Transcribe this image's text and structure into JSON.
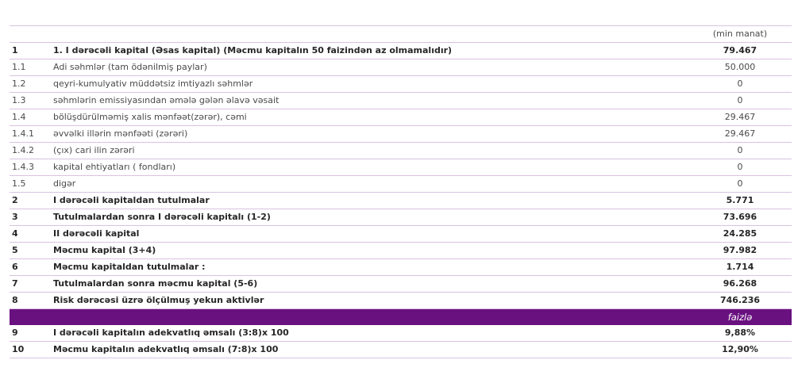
{
  "unit_label": "(min manat)",
  "percent_label": "faizlə",
  "colors": {
    "separator": "#d9c2e2",
    "band": "#6a1180",
    "bold_text": "#262626",
    "regular_text": "#4a4a4a"
  },
  "rows": [
    {
      "num": "1",
      "label": "1. I dərəcəli kapital (Əsas kapital) (Məcmu kapitalın 50 faizindən az olmamalıdır)",
      "value": "79.467",
      "bold": true
    },
    {
      "num": "1.1",
      "label": "Adi səhmlər (tam ödənilmiş paylar)",
      "value": "50.000",
      "bold": false
    },
    {
      "num": "1.2",
      "label": "qeyri-kumulyativ müddətsiz imtiyazlı səhmlər",
      "value": "0",
      "bold": false
    },
    {
      "num": "1.3",
      "label": "səhmlərin emissiyasından əmələ gələn əlavə vəsait",
      "value": "0",
      "bold": false
    },
    {
      "num": "1.4",
      "label": "bölüşdürülməmiş xalis mənfəət(zərər), cəmi",
      "value": "29.467",
      "bold": false
    },
    {
      "num": "1.4.1",
      "label": "əvvəlki illərin mənfəəti (zərəri)",
      "value": "29.467",
      "bold": false
    },
    {
      "num": "1.4.2",
      "label": "(çıx) cari ilin zərəri",
      "value": "0",
      "bold": false
    },
    {
      "num": "1.4.3",
      "label": "kapital ehtiyatları ( fondları)",
      "value": "0",
      "bold": false
    },
    {
      "num": "1.5",
      "label": "digər",
      "value": "0",
      "bold": false
    },
    {
      "num": "2",
      "label": "I dərəcəli kapitaldan tutulmalar",
      "value": "5.771",
      "bold": true
    },
    {
      "num": "3",
      "label": "Tutulmalardan sonra I dərəcəli kapitalı (1-2)",
      "value": "73.696",
      "bold": true
    },
    {
      "num": "4",
      "label": "II dərəcəli kapital",
      "value": "24.285",
      "bold": true
    },
    {
      "num": "5",
      "label": "Məcmu kapital  (3+4)",
      "value": "97.982",
      "bold": true
    },
    {
      "num": "6",
      "label": "Məcmu kapitaldan tutulmalar :",
      "value": "1.714",
      "bold": true
    },
    {
      "num": "7",
      "label": "Tutulmalardan sonra məcmu kapital (5-6)",
      "value": "96.268",
      "bold": true
    },
    {
      "num": "8",
      "label": "Risk dərəcəsi üzrə ölçülmuş yekun aktivlər",
      "value": "746.236",
      "bold": true
    }
  ],
  "rows_after_band": [
    {
      "num": "9",
      "label": "I dərəcəli kapitalın adekvatlıq əmsalı  (3:8)x 100",
      "value": "9,88%",
      "bold": true
    },
    {
      "num": "10",
      "label": "Məcmu kapitalın adekvatlıq əmsalı (7:8)x 100",
      "value": "12,90%",
      "bold": true
    }
  ]
}
